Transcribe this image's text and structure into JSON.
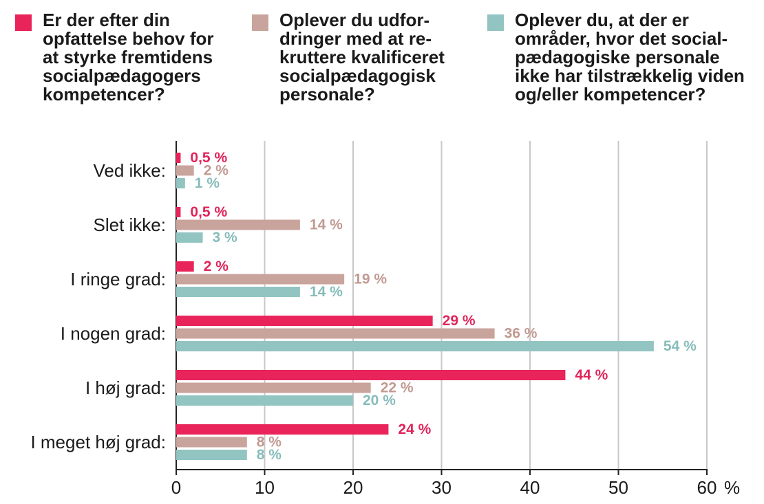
{
  "legend": [
    {
      "text": "Er der efter din\nopfattelse behov for\nat styrke fremtidens\nsocialpædagogers\nkompetencer?",
      "color": "#e8245a"
    },
    {
      "text": "Oplever du udfor-\ndringer med at re-\nkruttere kvalificeret\nsocialpædagogisk\npersonale?",
      "color": "#c9a49c"
    },
    {
      "text": "Oplever du, at der er\nområder, hvor det social-\npædagogiske personale\nikke har tilstrækkelig viden\nog/eller kompetencer?",
      "color": "#92c4c2"
    }
  ],
  "chart_data": {
    "type": "bar",
    "orientation": "horizontal",
    "categories": [
      "Ved ikke:",
      "Slet ikke:",
      "I ringe grad:",
      "I nogen grad:",
      "I høj grad:",
      "I meget høj grad:"
    ],
    "series": [
      {
        "values": [
          0.5,
          0.5,
          2,
          29,
          44,
          24
        ],
        "labels": [
          "0,5 %",
          "0,5 %",
          "2 %",
          "29 %",
          "44 %",
          "24 %"
        ],
        "color": "#e8245a",
        "label_color": "#e0245a"
      },
      {
        "values": [
          2,
          14,
          19,
          36,
          22,
          8
        ],
        "labels": [
          "2 %",
          "14 %",
          "19 %",
          "36 %",
          "22 %",
          "8 %"
        ],
        "color": "#c9a49c",
        "label_color": "#c19a92"
      },
      {
        "values": [
          1,
          3,
          14,
          54,
          20,
          8
        ],
        "labels": [
          "1 %",
          "3 %",
          "14 %",
          "54 %",
          "20 %",
          "8 %"
        ],
        "color": "#92c4c2",
        "label_color": "#86bcba"
      }
    ],
    "xlim": [
      0,
      60
    ],
    "xticks": [
      "0",
      "10",
      "20",
      "30",
      "40",
      "50",
      "60"
    ],
    "xunit": "%",
    "grid": true
  }
}
